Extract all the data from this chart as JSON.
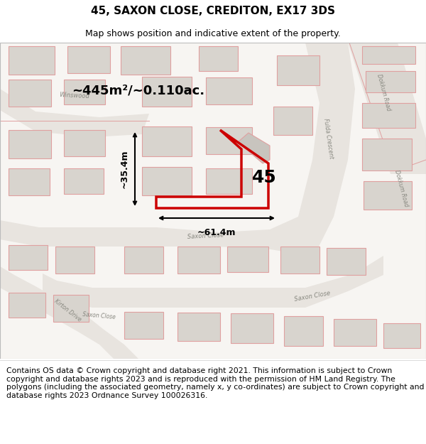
{
  "title": "45, SAXON CLOSE, CREDITON, EX17 3DS",
  "subtitle": "Map shows position and indicative extent of the property.",
  "footer": "Contains OS data © Crown copyright and database right 2021. This information is subject to Crown copyright and database rights 2023 and is reproduced with the permission of HM Land Registry. The polygons (including the associated geometry, namely x, y co-ordinates) are subject to Crown copyright and database rights 2023 Ordnance Survey 100026316.",
  "area_text": "~445m²/~0.110ac.",
  "width_text": "~61.4m",
  "height_text": "~35.4m",
  "plot_number": "45",
  "map_bg": "#f7f5f2",
  "road_fill": "#e8e4df",
  "building_fill": "#d8d4ce",
  "building_stroke": "#e0a0a0",
  "road_stroke": "#e0a0a0",
  "red_line": "#cc0000",
  "title_fontsize": 11,
  "subtitle_fontsize": 9,
  "footer_fontsize": 7.8,
  "label_color": "#888880"
}
